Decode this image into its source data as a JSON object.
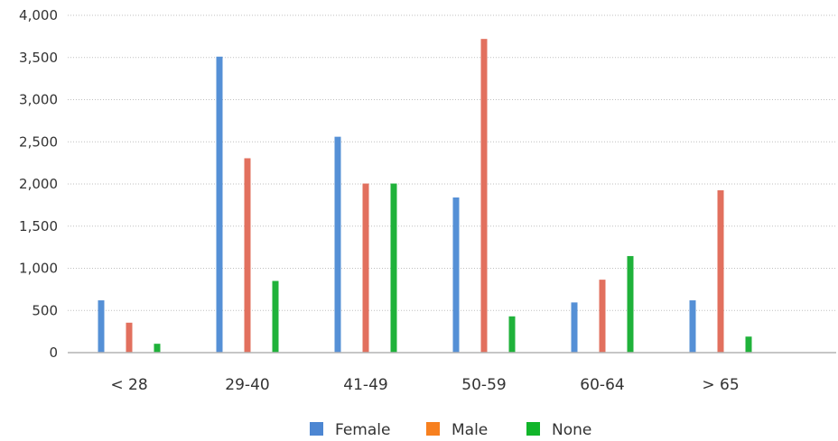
{
  "chart_data": {
    "type": "bar",
    "categories": [
      "< 28",
      "29-40",
      "41-49",
      "50-59",
      "60-64",
      "> 65"
    ],
    "series": [
      {
        "name": "Female",
        "color": "#5590d6",
        "values": [
          620,
          3510,
          2560,
          1840,
          595,
          620
        ]
      },
      {
        "name": "Male",
        "color": "#e2705e",
        "values": [
          355,
          2305,
          2005,
          3720,
          865,
          1925
        ]
      },
      {
        "name": "None",
        "color": "#1fb23a",
        "values": [
          105,
          850,
          2005,
          430,
          1145,
          190
        ]
      }
    ],
    "legend_swatch_colors": [
      "#4c86d2",
      "#f7801f",
      "#11b52a"
    ],
    "ylim": [
      0,
      4000
    ],
    "yticks": [
      0,
      500,
      1000,
      1500,
      2000,
      2500,
      3000,
      3500,
      4000
    ],
    "ytick_labels": [
      "0",
      "500",
      "1,000",
      "1,500",
      "2,000",
      "2,500",
      "3,000",
      "3,500",
      "4,000"
    ],
    "grid": true,
    "legend_position": "bottom"
  }
}
